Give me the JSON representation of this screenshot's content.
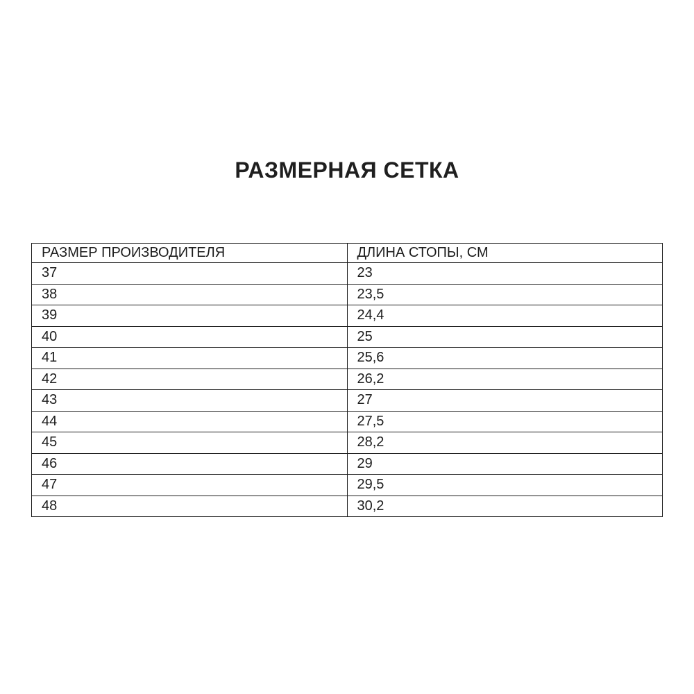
{
  "page": {
    "title": "РАЗМЕРНАЯ СЕТКА"
  },
  "colors": {
    "background": "#ffffff",
    "text": "#1c1c1c",
    "border": "#1c1c1c"
  },
  "chart_data": {
    "type": "table",
    "title": "РАЗМЕРНАЯ СЕТКА",
    "columns": [
      "РАЗМЕР ПРОИЗВОДИТЕЛЯ",
      "ДЛИНА СТОПЫ, СМ"
    ],
    "rows": [
      [
        "37",
        "23"
      ],
      [
        "38",
        "23,5"
      ],
      [
        "39",
        "24,4"
      ],
      [
        "40",
        "25"
      ],
      [
        "41",
        "25,6"
      ],
      [
        "42",
        "26,2"
      ],
      [
        "43",
        "27"
      ],
      [
        "44",
        "27,5"
      ],
      [
        "45",
        "28,2"
      ],
      [
        "46",
        "29"
      ],
      [
        "47",
        "29,5"
      ],
      [
        "48",
        "30,2"
      ]
    ]
  }
}
